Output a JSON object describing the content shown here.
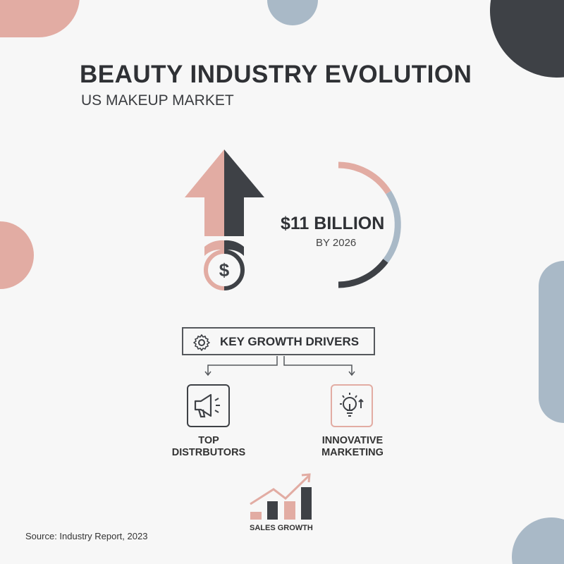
{
  "header": {
    "title": "BEAUTY INDUSTRY EVOLUTION",
    "subtitle": "US MAKEUP MARKET"
  },
  "forecast": {
    "value": "$11 BILLION",
    "year_label": "BY 2026",
    "coin_symbol": "$"
  },
  "drivers": {
    "heading": "KEY GROWTH DRIVERS",
    "items": [
      {
        "label_line1": "TOP",
        "label_line2": "DISTRBUTORS",
        "icon": "megaphone-icon"
      },
      {
        "label_line1": "INNOVATIVE",
        "label_line2": "MARKETING",
        "icon": "lightbulb-icon"
      }
    ]
  },
  "sales": {
    "label": "SALES GROWTH"
  },
  "source": "Source: Industry Report, 2023",
  "colors": {
    "pink": "#e2aca3",
    "dark": "#3e4146",
    "blue": "#a9b9c7",
    "background": "#f7f7f7"
  }
}
